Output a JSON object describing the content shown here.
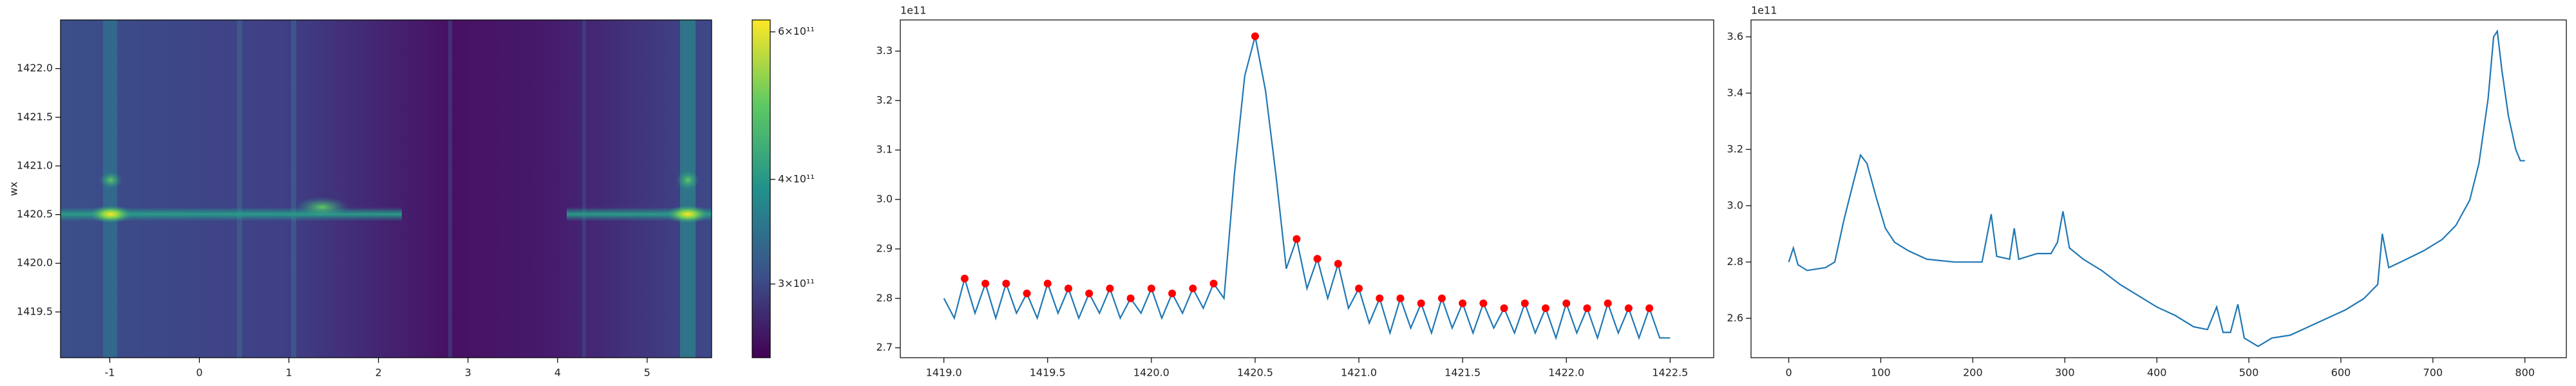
{
  "chart_data": [
    {
      "type": "heatmap",
      "ylabel": "wx",
      "xlim": [
        -1.55,
        5.72
      ],
      "ylim": [
        1419.03,
        1422.5
      ],
      "xticks": [
        -1,
        0,
        1,
        2,
        3,
        4,
        5
      ],
      "yticks": [
        1419.5,
        {
          "value": 1420,
          "label": "1420.0"
        },
        1420.5,
        {
          "value": 1421,
          "label": "1421.0"
        },
        1421.5,
        {
          "value": 1422,
          "label": "1422.0"
        }
      ],
      "colorbar": {
        "scale": "log",
        "lim": [
          245000000000,
          620000000000
        ],
        "ticks": [
          {
            "value": 300000000000,
            "label": "3×10¹¹"
          },
          {
            "value": 400000000000,
            "label": "4×10¹¹"
          },
          {
            "value": 600000000000,
            "label": "6×10¹¹"
          }
        ]
      }
    },
    {
      "type": "line",
      "offset_text": "1e11",
      "xlim": [
        1418.79,
        1422.71
      ],
      "ylim": [
        2.68,
        3.363
      ],
      "xticks": [
        {
          "value": 1419,
          "label": "1419.0"
        },
        1419.5,
        {
          "value": 1420,
          "label": "1420.0"
        },
        1420.5,
        {
          "value": 1421,
          "label": "1421.0"
        },
        1421.5,
        {
          "value": 1422,
          "label": "1422.0"
        },
        1422.5
      ],
      "yticks": [
        2.7,
        2.8,
        2.9,
        {
          "value": 3,
          "label": "3.0"
        },
        3.1,
        3.2,
        3.3
      ],
      "series": [
        {
          "color": "#1f77b4",
          "style": "line",
          "x": [
            1419,
            1419.05,
            1419.1,
            1419.15,
            1419.2,
            1419.25,
            1419.3,
            1419.35,
            1419.4,
            1419.45,
            1419.5,
            1419.55,
            1419.6,
            1419.65,
            1419.7,
            1419.75,
            1419.8,
            1419.85,
            1419.9,
            1419.95,
            1420,
            1420.05,
            1420.1,
            1420.15,
            1420.2,
            1420.25,
            1420.3,
            1420.35,
            1420.4,
            1420.45,
            1420.5,
            1420.55,
            1420.6,
            1420.65,
            1420.7,
            1420.75,
            1420.8,
            1420.85,
            1420.9,
            1420.95,
            1421,
            1421.05,
            1421.1,
            1421.15,
            1421.2,
            1421.25,
            1421.3,
            1421.35,
            1421.4,
            1421.45,
            1421.5,
            1421.55,
            1421.6,
            1421.65,
            1421.7,
            1421.75,
            1421.8,
            1421.85,
            1421.9,
            1421.95,
            1422,
            1422.05,
            1422.1,
            1422.15,
            1422.2,
            1422.25,
            1422.3,
            1422.35,
            1422.4,
            1422.45,
            1422.5
          ],
          "values": [
            2.8,
            2.76,
            2.84,
            2.77,
            2.83,
            2.76,
            2.83,
            2.77,
            2.81,
            2.76,
            2.83,
            2.77,
            2.82,
            2.76,
            2.81,
            2.77,
            2.82,
            2.76,
            2.8,
            2.77,
            2.82,
            2.76,
            2.81,
            2.77,
            2.82,
            2.78,
            2.83,
            2.8,
            3.05,
            3.25,
            3.33,
            3.22,
            3.05,
            2.86,
            2.92,
            2.82,
            2.88,
            2.8,
            2.87,
            2.78,
            2.82,
            2.75,
            2.8,
            2.73,
            2.8,
            2.74,
            2.79,
            2.73,
            2.8,
            2.74,
            2.79,
            2.73,
            2.79,
            2.74,
            2.78,
            2.73,
            2.79,
            2.73,
            2.78,
            2.72,
            2.79,
            2.73,
            2.78,
            2.72,
            2.79,
            2.73,
            2.78,
            2.72,
            2.78,
            2.72,
            2.72
          ]
        },
        {
          "color": "#ff0000",
          "style": "points",
          "x": [
            1419.1,
            1419.2,
            1419.3,
            1419.4,
            1419.5,
            1419.6,
            1419.7,
            1419.8,
            1419.9,
            1420,
            1420.1,
            1420.2,
            1420.3,
            1420.5,
            1420.7,
            1420.8,
            1420.9,
            1421,
            1421.1,
            1421.2,
            1421.3,
            1421.4,
            1421.5,
            1421.6,
            1421.7,
            1421.8,
            1421.9,
            1422,
            1422.1,
            1422.2,
            1422.3,
            1422.4
          ],
          "values": [
            2.84,
            2.83,
            2.83,
            2.81,
            2.83,
            2.82,
            2.81,
            2.82,
            2.8,
            2.82,
            2.81,
            2.82,
            2.83,
            3.33,
            2.92,
            2.88,
            2.87,
            2.82,
            2.8,
            2.8,
            2.79,
            2.8,
            2.79,
            2.79,
            2.78,
            2.79,
            2.78,
            2.79,
            2.78,
            2.79,
            2.78,
            2.78
          ]
        }
      ]
    },
    {
      "type": "line",
      "offset_text": "1e11",
      "xlim": [
        -41,
        845
      ],
      "ylim": [
        2.46,
        3.66
      ],
      "xticks": [
        0,
        100,
        200,
        300,
        400,
        500,
        600,
        700,
        800
      ],
      "yticks": [
        2.6,
        2.8,
        {
          "value": 3,
          "label": "3.0"
        },
        3.2,
        3.4,
        3.6
      ],
      "series": [
        {
          "color": "#1f77b4",
          "style": "line",
          "x": [
            0,
            5,
            10,
            20,
            40,
            50,
            60,
            70,
            78,
            85,
            95,
            105,
            115,
            130,
            150,
            180,
            210,
            220,
            226,
            240,
            245,
            250,
            270,
            285,
            292,
            298,
            305,
            320,
            340,
            360,
            380,
            400,
            420,
            440,
            455,
            465,
            472,
            480,
            488,
            495,
            510,
            525,
            545,
            565,
            585,
            605,
            625,
            640,
            645,
            652,
            665,
            690,
            710,
            725,
            740,
            750,
            760,
            766,
            770,
            775,
            782,
            790,
            795,
            800
          ],
          "values": [
            2.8,
            2.85,
            2.79,
            2.77,
            2.78,
            2.8,
            2.95,
            3.08,
            3.18,
            3.15,
            3.03,
            2.92,
            2.87,
            2.84,
            2.81,
            2.8,
            2.8,
            2.97,
            2.82,
            2.81,
            2.92,
            2.81,
            2.83,
            2.83,
            2.87,
            2.98,
            2.85,
            2.81,
            2.77,
            2.72,
            2.68,
            2.64,
            2.61,
            2.57,
            2.56,
            2.64,
            2.55,
            2.55,
            2.65,
            2.53,
            2.5,
            2.53,
            2.54,
            2.57,
            2.6,
            2.63,
            2.67,
            2.72,
            2.9,
            2.78,
            2.8,
            2.84,
            2.88,
            2.93,
            3.02,
            3.15,
            3.38,
            3.6,
            3.62,
            3.48,
            3.32,
            3.2,
            3.16,
            3.16
          ]
        }
      ]
    }
  ]
}
